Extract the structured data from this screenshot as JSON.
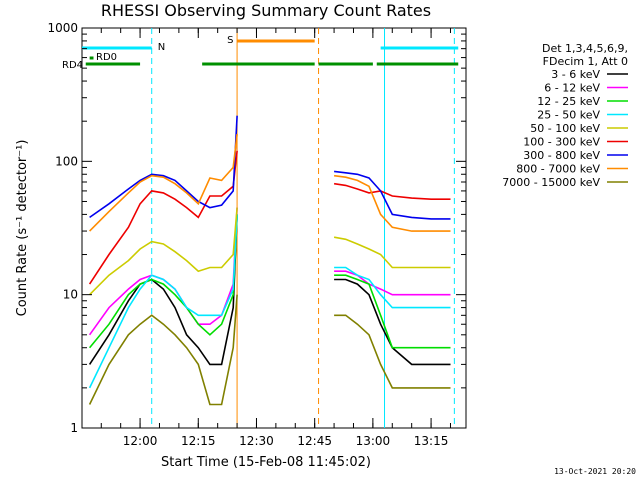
{
  "chart_data": {
    "type": "line",
    "title": "RHESSI Observing Summary Count Rates",
    "xlabel": "Start Time (15-Feb-08 11:45:02)",
    "ylabel": "Count Rate (s⁻¹ detector⁻¹)",
    "yscale": "log",
    "ylim": [
      1,
      1000
    ],
    "xlim": [
      "11:45:02",
      "13:24"
    ],
    "x_ticks": [
      "12:00",
      "12:15",
      "12:30",
      "12:45",
      "13:00",
      "13:15"
    ],
    "y_ticks": [
      "1",
      "10",
      "100",
      "1000"
    ],
    "legend_header": [
      "Det 1,3,4,5,6,9,",
      "FDecim 1, Att 0"
    ],
    "legend_placement": "right",
    "footer_date": "13-Oct-2021 20:20",
    "flags": [
      {
        "label": "N",
        "color": "#00e8ff",
        "segments": [
          [
            "11:45",
            "12:03"
          ],
          [
            "13:02",
            "13:22"
          ]
        ]
      },
      {
        "label": "S",
        "color": "#ff8c00",
        "segments": [
          [
            "12:25",
            "12:45"
          ]
        ]
      },
      {
        "label": "RD0",
        "color": "#009000",
        "segments": [
          [
            "11:47",
            "11:48"
          ]
        ]
      },
      {
        "label": "RD4",
        "color": "#009000",
        "segments": [
          [
            "11:46",
            "12:00"
          ],
          [
            "12:16",
            "12:45"
          ],
          [
            "12:46",
            "13:00"
          ],
          [
            "13:01",
            "13:22"
          ]
        ]
      }
    ],
    "markers": [
      {
        "time": "12:03",
        "color": "#00e8ff",
        "style": "dashed"
      },
      {
        "time": "12:25",
        "color": "#ff8c00",
        "style": "solid"
      },
      {
        "time": "12:46",
        "color": "#ff8c00",
        "style": "dashed"
      },
      {
        "time": "13:03",
        "color": "#00e8ff",
        "style": "solid"
      },
      {
        "time": "13:21",
        "color": "#00e8ff",
        "style": "dashed"
      }
    ],
    "time_samples": [
      "11:47",
      "11:52",
      "11:57",
      "12:00",
      "12:03",
      "12:06",
      "12:09",
      "12:12",
      "12:15",
      "12:18",
      "12:21",
      "12:24",
      "12:25",
      "12:50",
      "12:53",
      "12:56",
      "12:59",
      "13:02",
      "13:05",
      "13:10",
      "13:15",
      "13:20"
    ],
    "series": [
      {
        "name": "3 - 6 keV",
        "color": "#000000",
        "values": [
          3,
          5,
          9,
          12,
          13,
          11,
          8,
          5,
          4,
          3,
          3,
          8,
          40,
          13,
          13,
          12,
          10,
          6,
          4,
          3,
          3,
          3
        ]
      },
      {
        "name": "6 - 12 keV",
        "color": "#ff00ff",
        "values": [
          5,
          8,
          11,
          13,
          14,
          13,
          11,
          8,
          6,
          6,
          7,
          12,
          45,
          15,
          15,
          14,
          12,
          11,
          10,
          10,
          10,
          10
        ]
      },
      {
        "name": "12 - 25 keV",
        "color": "#00dd00",
        "values": [
          4,
          6,
          10,
          12,
          13,
          12,
          10,
          8,
          6,
          5,
          6,
          10,
          40,
          14,
          14,
          13,
          12,
          7,
          4,
          4,
          4,
          4
        ]
      },
      {
        "name": "25 - 50 keV",
        "color": "#00e8ff",
        "values": [
          2,
          4,
          8,
          11,
          14,
          13,
          11,
          8,
          7,
          7,
          7,
          11,
          40,
          16,
          16,
          14,
          13,
          10,
          8,
          8,
          8,
          8
        ]
      },
      {
        "name": "50 - 100 keV",
        "color": "#cccc00",
        "values": [
          10,
          14,
          18,
          22,
          25,
          24,
          21,
          18,
          15,
          16,
          16,
          20,
          45,
          27,
          26,
          24,
          22,
          20,
          16,
          16,
          16,
          16
        ]
      },
      {
        "name": "100 - 300 keV",
        "color": "#ee0000",
        "values": [
          12,
          20,
          32,
          48,
          60,
          58,
          52,
          45,
          38,
          55,
          55,
          65,
          120,
          68,
          66,
          62,
          58,
          60,
          55,
          53,
          52,
          52
        ]
      },
      {
        "name": "300 - 800 keV",
        "color": "#0000ee",
        "values": [
          38,
          48,
          62,
          72,
          80,
          78,
          72,
          60,
          50,
          45,
          47,
          60,
          220,
          84,
          82,
          80,
          75,
          60,
          40,
          38,
          37,
          37
        ]
      },
      {
        "name": "800 - 7000 keV",
        "color": "#ff8c00",
        "values": [
          30,
          42,
          58,
          70,
          78,
          76,
          68,
          58,
          48,
          75,
          72,
          90,
          160,
          78,
          76,
          72,
          65,
          40,
          32,
          30,
          30,
          30
        ]
      },
      {
        "name": "7000 - 15000 keV",
        "color": "#808000",
        "values": [
          1.5,
          3,
          5,
          6,
          7,
          6,
          5,
          4,
          3,
          1.5,
          1.5,
          4,
          10,
          7,
          7,
          6,
          5,
          3,
          2,
          2,
          2,
          2
        ]
      }
    ]
  }
}
